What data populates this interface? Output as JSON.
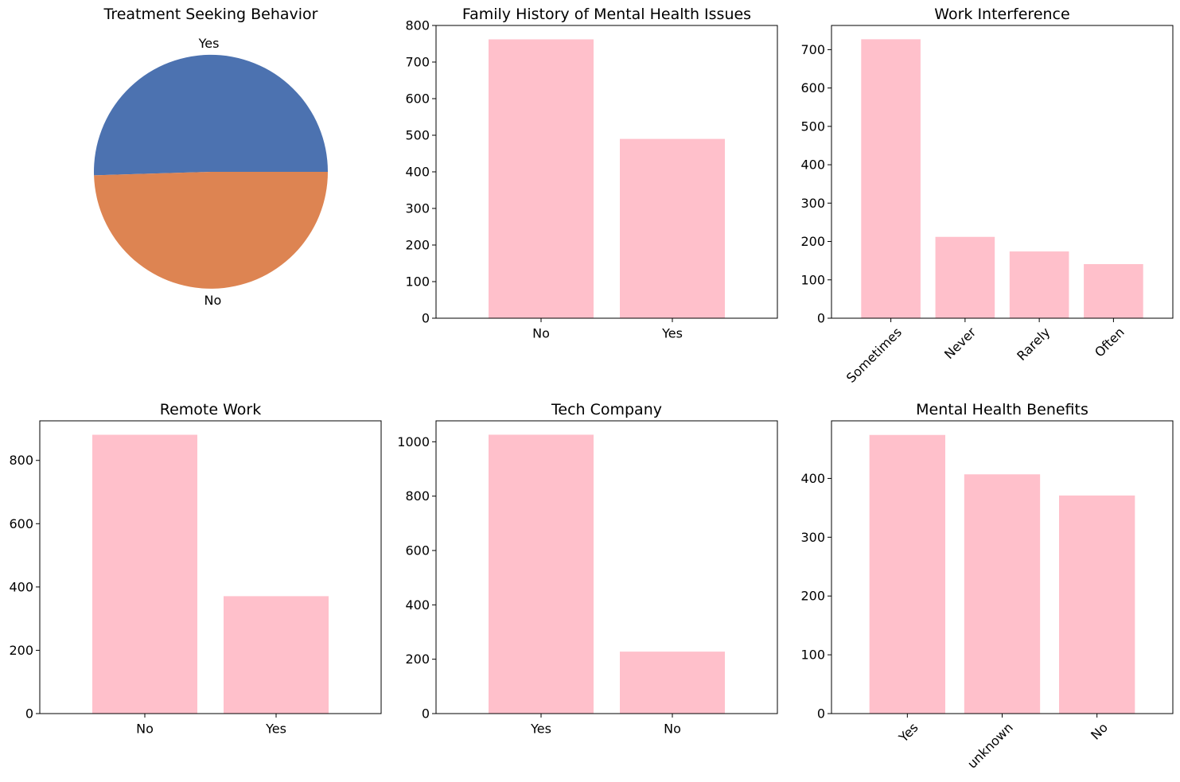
{
  "colors": {
    "bar": "#FFC0CB",
    "pie": [
      "#4C72B0",
      "#DD8452"
    ],
    "axis": "#000000",
    "background": "#FFFFFF"
  },
  "chart_data": [
    {
      "type": "pie",
      "title": "Treatment Seeking Behavior",
      "categories": [
        "Yes",
        "No"
      ],
      "values": [
        632,
        620
      ],
      "start_angle_deg": 0,
      "direction": "counterclockwise",
      "legend": false
    },
    {
      "type": "bar",
      "title": "Family History of Mental Health Issues",
      "categories": [
        "No",
        "Yes"
      ],
      "values": [
        762,
        490
      ],
      "ylim": [
        0,
        800
      ],
      "yticks": [
        0,
        100,
        200,
        300,
        400,
        500,
        600,
        700,
        800
      ],
      "xtick_rotation": 0,
      "xlabel": "",
      "ylabel": "",
      "grid": false
    },
    {
      "type": "bar",
      "title": "Work Interference",
      "categories": [
        "Sometimes",
        "Never",
        "Rarely",
        "Often"
      ],
      "values": [
        727,
        212,
        174,
        141
      ],
      "ylim": [
        0,
        763
      ],
      "yticks": [
        0,
        100,
        200,
        300,
        400,
        500,
        600,
        700
      ],
      "xtick_rotation": -45,
      "xlabel": "",
      "ylabel": "",
      "grid": false
    },
    {
      "type": "bar",
      "title": "Remote Work",
      "categories": [
        "No",
        "Yes"
      ],
      "values": [
        881,
        371
      ],
      "ylim": [
        0,
        925
      ],
      "yticks": [
        0,
        200,
        400,
        600,
        800
      ],
      "xtick_rotation": 0,
      "xlabel": "",
      "ylabel": "",
      "grid": false
    },
    {
      "type": "bar",
      "title": "Tech Company",
      "categories": [
        "Yes",
        "No"
      ],
      "values": [
        1026,
        228
      ],
      "ylim": [
        0,
        1077
      ],
      "yticks": [
        0,
        200,
        400,
        600,
        800,
        1000
      ],
      "xtick_rotation": 0,
      "xlabel": "",
      "ylabel": "",
      "grid": false
    },
    {
      "type": "bar",
      "title": "Mental Health Benefits",
      "categories": [
        "Yes",
        "unknown",
        "No"
      ],
      "values": [
        474,
        407,
        371
      ],
      "ylim": [
        0,
        498
      ],
      "yticks": [
        0,
        100,
        200,
        300,
        400
      ],
      "xtick_rotation": -45,
      "xlabel": "",
      "ylabel": "",
      "grid": false
    }
  ]
}
